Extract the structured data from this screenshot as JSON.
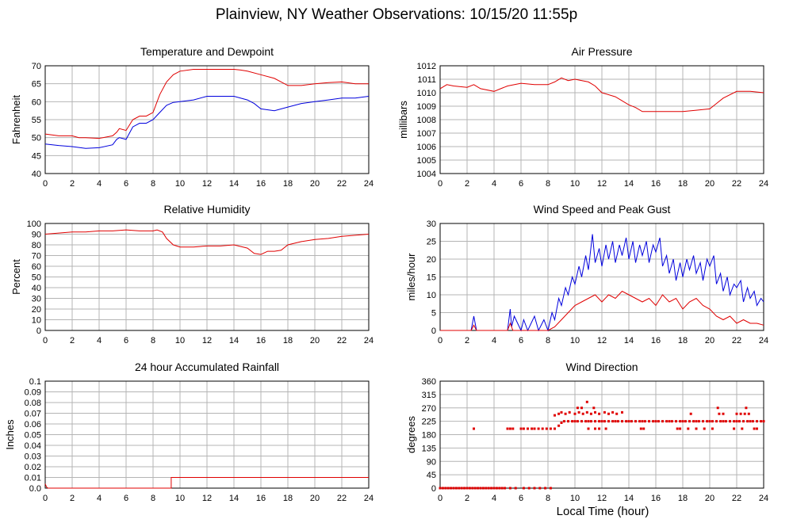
{
  "page": {
    "title": "Plainview, NY Weather Observations: 10/15/20 11:55p"
  },
  "colors": {
    "red": "#e00000",
    "blue": "#0000dd",
    "grid": "#b4b4b4"
  },
  "x_axis_label": "Local Time (hour)",
  "chart_data": [
    {
      "id": "temperature",
      "type": "line",
      "title": "Temperature and Dewpoint",
      "ylabel": "Fahrenheit",
      "xlim": [
        0,
        24
      ],
      "ylim": [
        40,
        70
      ],
      "xticks": [
        0,
        2,
        4,
        6,
        8,
        10,
        12,
        14,
        16,
        18,
        20,
        22,
        24
      ],
      "yticks": [
        40,
        45,
        50,
        55,
        60,
        65,
        70
      ],
      "grid": true,
      "series": [
        {
          "color": "#e00000",
          "x": [
            0,
            1,
            2,
            2.5,
            3,
            4,
            5,
            5.3,
            5.5,
            6,
            6.5,
            7,
            7.5,
            8,
            8.5,
            9,
            9.5,
            10,
            11,
            12,
            13,
            14,
            14.5,
            15,
            16,
            17,
            18,
            19,
            20,
            21,
            22,
            23,
            24
          ],
          "y": [
            51,
            50.5,
            50.5,
            50,
            50,
            49.8,
            50.5,
            51.5,
            52.5,
            52,
            55,
            56,
            56,
            57,
            62,
            65.5,
            67.5,
            68.5,
            69,
            69,
            69,
            69,
            68.8,
            68.5,
            67.5,
            66.5,
            64.5,
            64.5,
            65,
            65.3,
            65.5,
            65,
            65
          ]
        },
        {
          "color": "#0000dd",
          "x": [
            0,
            1,
            2,
            3,
            4,
            5,
            5.3,
            5.5,
            6,
            6.5,
            7,
            7.5,
            8,
            8.5,
            9,
            9.5,
            10,
            11,
            12,
            13,
            14,
            15,
            15.5,
            16,
            17,
            18,
            19,
            20,
            21,
            22,
            23,
            24
          ],
          "y": [
            48.2,
            47.8,
            47.5,
            47,
            47.2,
            48,
            49.5,
            50,
            49.5,
            53,
            54,
            54,
            55,
            57,
            59,
            59.8,
            60,
            60.5,
            61.5,
            61.5,
            61.5,
            60.5,
            59.5,
            58,
            57.5,
            58.5,
            59.5,
            60,
            60.5,
            61,
            61,
            61.5
          ]
        }
      ]
    },
    {
      "id": "pressure",
      "type": "line",
      "title": "Air Pressure",
      "ylabel": "millibars",
      "xlim": [
        0,
        24
      ],
      "ylim": [
        1004,
        1012
      ],
      "xticks": [
        0,
        2,
        4,
        6,
        8,
        10,
        12,
        14,
        16,
        18,
        20,
        22,
        24
      ],
      "yticks": [
        1004,
        1005,
        1006,
        1007,
        1008,
        1009,
        1010,
        1011,
        1012
      ],
      "grid": true,
      "series": [
        {
          "color": "#e00000",
          "x": [
            0,
            0.5,
            1,
            2,
            2.5,
            3,
            4,
            4.5,
            5,
            6,
            7,
            8,
            8.5,
            9,
            9.5,
            10,
            11,
            11.5,
            12,
            13,
            13.5,
            14,
            14.5,
            15,
            16,
            17,
            18,
            19,
            20,
            20.5,
            21,
            22,
            23,
            24
          ],
          "y": [
            1010.3,
            1010.6,
            1010.5,
            1010.4,
            1010.6,
            1010.3,
            1010.1,
            1010.3,
            1010.5,
            1010.7,
            1010.6,
            1010.6,
            1010.8,
            1011.1,
            1010.9,
            1011,
            1010.8,
            1010.5,
            1010,
            1009.7,
            1009.4,
            1009.1,
            1008.9,
            1008.6,
            1008.6,
            1008.6,
            1008.6,
            1008.7,
            1008.8,
            1009.2,
            1009.6,
            1010.1,
            1010.1,
            1010
          ]
        }
      ]
    },
    {
      "id": "humidity",
      "type": "line",
      "title": "Relative Humidity",
      "ylabel": "Percent",
      "xlim": [
        0,
        24
      ],
      "ylim": [
        0,
        100
      ],
      "xticks": [
        0,
        2,
        4,
        6,
        8,
        10,
        12,
        14,
        16,
        18,
        20,
        22,
        24
      ],
      "yticks": [
        0,
        10,
        20,
        30,
        40,
        50,
        60,
        70,
        80,
        90,
        100
      ],
      "grid": true,
      "series": [
        {
          "color": "#e00000",
          "x": [
            0,
            1,
            2,
            3,
            4,
            5,
            6,
            7,
            8,
            8.3,
            8.7,
            9,
            9.5,
            10,
            11,
            12,
            13,
            14,
            15,
            15.5,
            16,
            16.5,
            17,
            17.5,
            18,
            19,
            20,
            21,
            22,
            23,
            24
          ],
          "y": [
            90,
            91,
            92,
            92,
            93,
            93,
            94,
            93,
            93,
            94,
            92,
            86,
            80,
            78,
            78,
            79,
            79,
            80,
            77,
            72,
            71,
            74,
            74,
            75,
            80,
            83,
            85,
            86,
            88,
            89,
            90
          ]
        }
      ]
    },
    {
      "id": "wind",
      "type": "line",
      "title": "Wind Speed and Peak Gust",
      "ylabel": "miles/hour",
      "xlim": [
        0,
        24
      ],
      "ylim": [
        0,
        30
      ],
      "xticks": [
        0,
        2,
        4,
        6,
        8,
        10,
        12,
        14,
        16,
        18,
        20,
        22,
        24
      ],
      "yticks": [
        0,
        5,
        10,
        15,
        20,
        25,
        30
      ],
      "grid": true,
      "series": [
        {
          "color": "#0000dd",
          "x": [
            0,
            2.3,
            2.5,
            2.7,
            5,
            5.2,
            5.3,
            5.5,
            6,
            6.2,
            6.5,
            7,
            7.3,
            7.7,
            8,
            8.3,
            8.5,
            8.8,
            9,
            9.3,
            9.5,
            9.8,
            10,
            10.3,
            10.5,
            10.8,
            11,
            11.3,
            11.5,
            11.8,
            12,
            12.3,
            12.5,
            12.8,
            13,
            13.3,
            13.5,
            13.8,
            14,
            14.3,
            14.5,
            14.8,
            15,
            15.3,
            15.5,
            15.8,
            16,
            16.3,
            16.5,
            16.8,
            17,
            17.3,
            17.5,
            17.8,
            18,
            18.3,
            18.5,
            18.8,
            19,
            19.3,
            19.5,
            19.8,
            20,
            20.3,
            20.5,
            20.8,
            21,
            21.3,
            21.5,
            21.8,
            22,
            22.3,
            22.5,
            22.8,
            23,
            23.3,
            23.5,
            23.8,
            24
          ],
          "y": [
            0,
            0,
            4,
            0,
            0,
            6,
            1,
            4,
            0,
            3,
            0,
            4,
            0,
            3,
            0,
            5,
            3,
            9,
            7,
            12,
            10,
            15,
            13,
            18,
            15,
            21,
            17,
            27,
            19,
            23,
            18,
            24,
            20,
            25,
            19,
            24,
            21,
            26,
            20,
            25,
            19,
            24,
            21,
            25,
            19,
            24,
            22,
            26,
            18,
            21,
            16,
            20,
            14,
            19,
            15,
            20,
            17,
            21,
            16,
            19,
            14,
            20,
            18,
            21,
            13,
            16,
            11,
            15,
            10,
            13,
            12,
            14,
            8,
            12,
            9,
            11,
            7,
            9,
            8
          ]
        },
        {
          "color": "#e00000",
          "x": [
            0,
            2.3,
            2.5,
            2.7,
            5,
            5.2,
            5.4,
            6,
            8,
            8.5,
            9,
            9.5,
            10,
            10.5,
            11,
            11.5,
            12,
            12.5,
            13,
            13.5,
            14,
            14.5,
            15,
            15.5,
            16,
            16.5,
            17,
            17.5,
            18,
            18.5,
            19,
            19.5,
            20,
            20.5,
            21,
            21.5,
            22,
            22.5,
            23,
            23.5,
            24
          ],
          "y": [
            0,
            0,
            1.5,
            0,
            0,
            2,
            0,
            0,
            0,
            1,
            3,
            5,
            7,
            8,
            9,
            10,
            8,
            10,
            9,
            11,
            10,
            9,
            8,
            9,
            7,
            10,
            8,
            9,
            6,
            8,
            9,
            7,
            6,
            4,
            3,
            4,
            2,
            3,
            2,
            2,
            1.5
          ]
        }
      ]
    },
    {
      "id": "rainfall",
      "type": "line",
      "title": "24 hour Accumulated Rainfall",
      "ylabel": "Inches",
      "xlim": [
        0,
        24
      ],
      "ylim": [
        0,
        0.1
      ],
      "xticks": [
        0,
        2,
        4,
        6,
        8,
        10,
        12,
        14,
        16,
        18,
        20,
        22,
        24
      ],
      "yticks": [
        0,
        0.01,
        0.02,
        0.03,
        0.04,
        0.05,
        0.06,
        0.07,
        0.08,
        0.09,
        0.1
      ],
      "ytick_labels": [
        "0.0",
        "0.01",
        "0.02",
        "0.03",
        "0.04",
        "0.05",
        "0.06",
        "0.07",
        "0.08",
        "0.09",
        "0.1"
      ],
      "grid": true,
      "series": [
        {
          "color": "#e00000",
          "x": [
            0,
            0.1,
            0.2,
            9.35,
            9.35,
            24
          ],
          "y": [
            0.004,
            0.001,
            0,
            0,
            0.01,
            0.01
          ]
        }
      ]
    },
    {
      "id": "direction",
      "type": "scatter",
      "title": "Wind Direction",
      "ylabel": "degrees",
      "xlim": [
        0,
        24
      ],
      "ylim": [
        0,
        360
      ],
      "xticks": [
        0,
        2,
        4,
        6,
        8,
        10,
        12,
        14,
        16,
        18,
        20,
        22,
        24
      ],
      "yticks": [
        0,
        45,
        90,
        135,
        180,
        225,
        270,
        315,
        360
      ],
      "grid": true,
      "series": [
        {
          "color": "#e00000",
          "x": [
            0,
            0.2,
            0.4,
            0.6,
            0.8,
            1,
            1.2,
            1.4,
            1.6,
            1.8,
            2,
            2.2,
            2.4,
            2.6,
            2.8,
            3,
            3.2,
            3.4,
            3.6,
            3.8,
            4,
            4.2,
            4.4,
            4.6,
            4.8,
            5.2,
            5.6,
            6.2,
            6.6,
            7,
            7.4,
            7.8,
            8.2,
            2.5,
            5,
            5.2,
            5.4,
            6,
            6.2,
            6.5,
            6.8,
            7,
            7.3,
            7.6,
            7.9,
            8.2,
            8.5,
            8.8,
            9,
            9.2,
            9.5,
            9.8,
            10,
            10.2,
            10.5,
            10.8,
            11,
            11.2,
            11.5,
            11.8,
            12,
            12.2,
            12.5,
            12.8,
            13,
            13.2,
            13.5,
            13.8,
            14,
            14.2,
            14.5,
            14.8,
            15,
            15.2,
            15.5,
            15.8,
            16,
            16.2,
            16.5,
            16.8,
            17,
            17.2,
            17.5,
            17.8,
            18,
            18.2,
            18.5,
            18.8,
            19,
            19.2,
            19.5,
            19.8,
            20,
            20.2,
            20.5,
            20.8,
            21,
            21.2,
            21.5,
            21.8,
            22,
            22.2,
            22.5,
            22.8,
            23,
            23.2,
            23.5,
            23.8,
            24,
            8.5,
            8.8,
            9,
            9.3,
            9.6,
            10,
            10.3,
            10.6,
            10.9,
            11.2,
            11.5,
            11.8,
            12.2,
            12.5,
            12.8,
            13.1,
            13.5,
            18.6,
            20.7,
            21,
            22,
            22.3,
            22.6,
            22.9,
            10.2,
            10.5,
            10.9,
            11.4,
            20.6,
            22.7,
            11,
            11.5,
            11.8,
            12.3,
            14.9,
            15.1,
            17.6,
            17.8,
            18.4,
            19,
            19.6,
            20.2,
            21.8,
            22.4,
            23.3,
            23.5
          ],
          "y": [
            0,
            0,
            0,
            0,
            0,
            0,
            0,
            0,
            0,
            0,
            0,
            0,
            0,
            0,
            0,
            0,
            0,
            0,
            0,
            0,
            0,
            0,
            0,
            0,
            0,
            0,
            0,
            0,
            0,
            0,
            0,
            0,
            0,
            200,
            200,
            200,
            200,
            200,
            200,
            200,
            200,
            200,
            200,
            200,
            200,
            200,
            200,
            210,
            220,
            225,
            225,
            225,
            225,
            225,
            225,
            225,
            225,
            225,
            225,
            225,
            225,
            225,
            225,
            225,
            225,
            225,
            225,
            225,
            225,
            225,
            225,
            225,
            225,
            225,
            225,
            225,
            225,
            225,
            225,
            225,
            225,
            225,
            225,
            225,
            225,
            225,
            225,
            225,
            225,
            225,
            225,
            225,
            225,
            225,
            225,
            225,
            225,
            225,
            225,
            225,
            225,
            225,
            225,
            225,
            225,
            225,
            225,
            225,
            225,
            245,
            250,
            255,
            250,
            255,
            250,
            255,
            250,
            255,
            250,
            255,
            250,
            255,
            250,
            255,
            250,
            255,
            250,
            250,
            250,
            250,
            250,
            250,
            250,
            270,
            270,
            290,
            270,
            270,
            270,
            200,
            200,
            200,
            200,
            200,
            200,
            200,
            200,
            200,
            200,
            200,
            200,
            200,
            200,
            200,
            200
          ]
        }
      ]
    }
  ]
}
